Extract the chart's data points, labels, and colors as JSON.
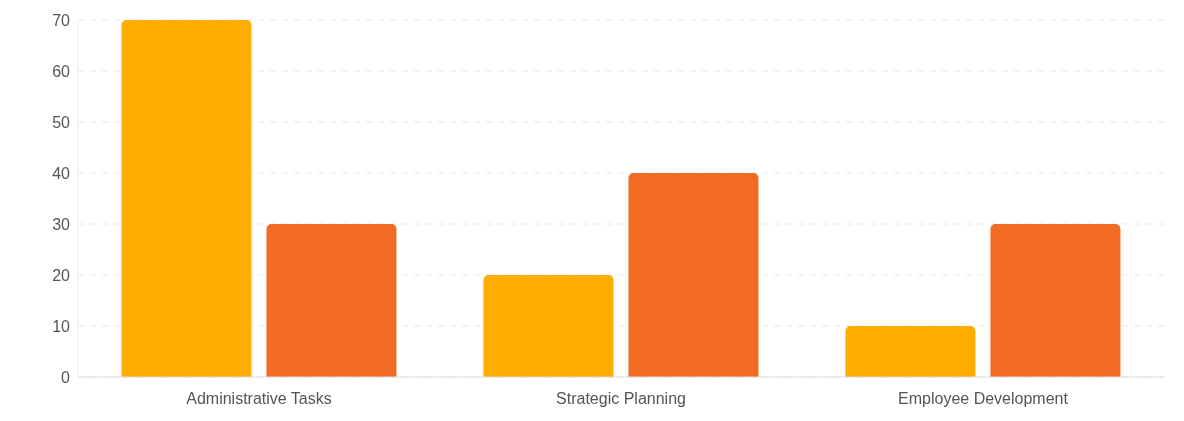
{
  "chart_data": {
    "type": "bar",
    "categories": [
      "Administrative Tasks",
      "Strategic Planning",
      "Employee Development"
    ],
    "series": [
      {
        "color": "#ffad00",
        "values": [
          70,
          20,
          10
        ]
      },
      {
        "color": "#f26b22",
        "values": [
          30,
          40,
          30
        ]
      }
    ],
    "ylim": [
      0,
      70
    ],
    "yticks": [
      0,
      10,
      20,
      30,
      40,
      50,
      60,
      70
    ],
    "grid": "y"
  }
}
